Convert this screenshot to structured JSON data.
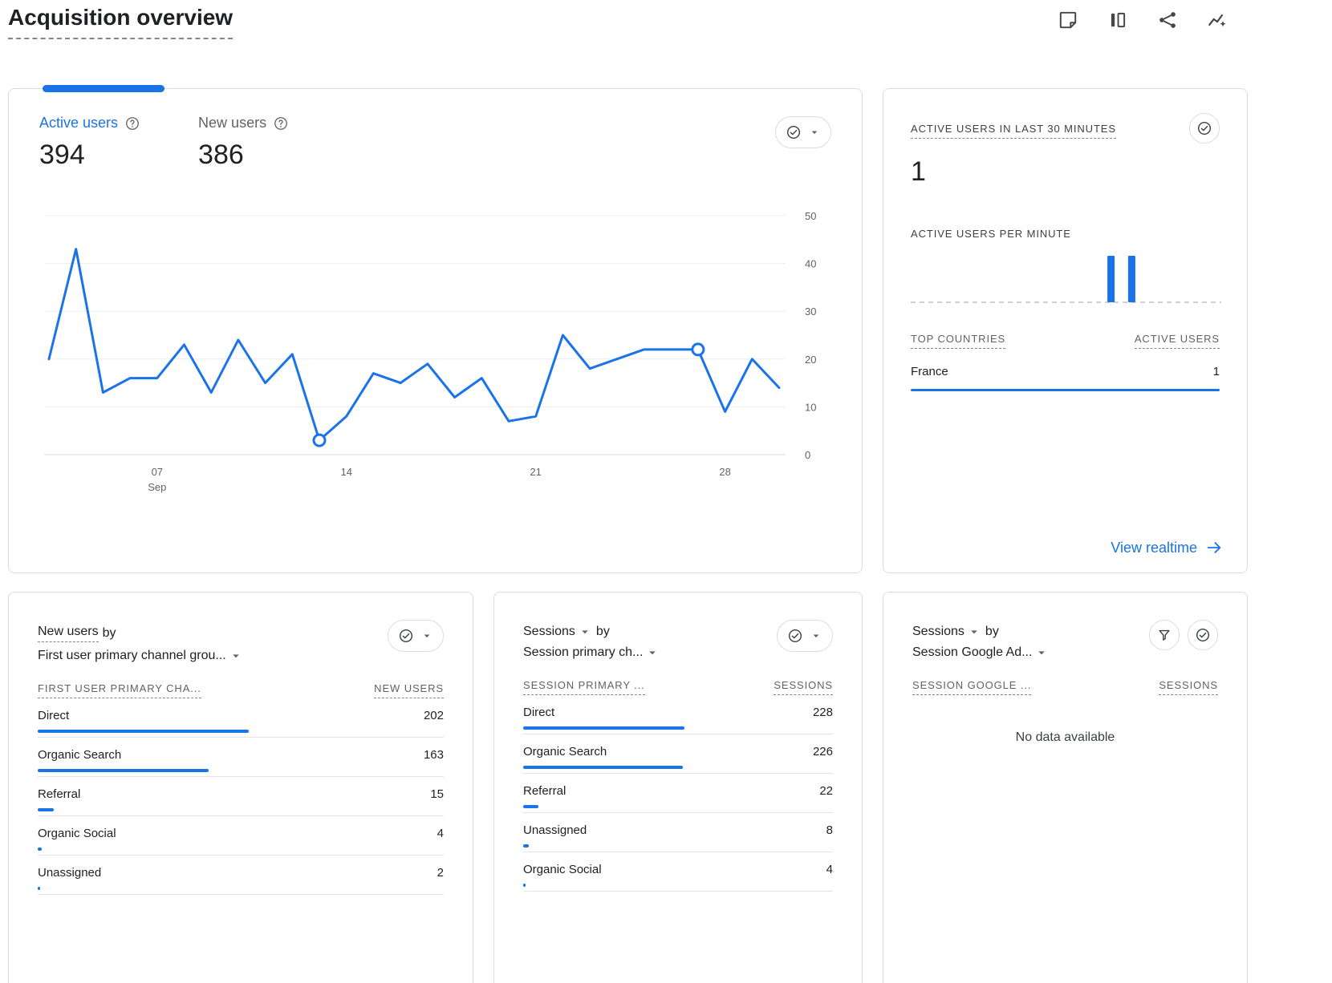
{
  "page": {
    "title": "Acquisition overview"
  },
  "header": {
    "icons": [
      "note-icon",
      "comparison-icon",
      "share-icon",
      "insights-icon",
      "edit-icon"
    ]
  },
  "colors": {
    "accent": "#1a73e8",
    "text": "#202124",
    "muted": "#5f6368",
    "border": "#dadce0"
  },
  "main_card": {
    "metrics": [
      {
        "label": "Active users",
        "value": "394",
        "active": true
      },
      {
        "label": "New users",
        "value": "386",
        "active": false
      }
    ]
  },
  "realtime_card": {
    "title": "ACTIVE USERS IN LAST 30 MINUTES",
    "value": "1",
    "per_minute_label": "ACTIVE USERS PER MINUTE",
    "countries_header": "TOP COUNTRIES",
    "active_users_header": "ACTIVE USERS",
    "rows": [
      {
        "label": "France",
        "value": "1",
        "pct": 100
      }
    ],
    "link_label": "View realtime"
  },
  "breakdown_cards": [
    {
      "metric": "New users",
      "metric_dropdown": false,
      "by_label": "by",
      "dimension": "First user primary channel grou...",
      "col1": "FIRST USER PRIMARY CHA...",
      "col2": "NEW USERS",
      "buttons": [
        "check-dropdown"
      ],
      "rows": [
        {
          "label": "Direct",
          "value": 202
        },
        {
          "label": "Organic Search",
          "value": 163
        },
        {
          "label": "Referral",
          "value": 15
        },
        {
          "label": "Organic Social",
          "value": 4
        },
        {
          "label": "Unassigned",
          "value": 2
        }
      ]
    },
    {
      "metric": "Sessions",
      "metric_dropdown": true,
      "by_label": "by",
      "dimension": "Session primary ch...",
      "col1": "SESSION PRIMARY ...",
      "col2": "SESSIONS",
      "buttons": [
        "check-dropdown"
      ],
      "rows": [
        {
          "label": "Direct",
          "value": 228
        },
        {
          "label": "Organic Search",
          "value": 226
        },
        {
          "label": "Referral",
          "value": 22
        },
        {
          "label": "Unassigned",
          "value": 8
        },
        {
          "label": "Organic Social",
          "value": 4
        }
      ]
    },
    {
      "metric": "Sessions",
      "metric_dropdown": true,
      "by_label": "by",
      "dimension": "Session Google Ad...",
      "col1": "SESSION GOOGLE ...",
      "col2": "SESSIONS",
      "buttons": [
        "filter",
        "check"
      ],
      "rows": [],
      "empty_text": "No data available"
    }
  ],
  "chart_data": [
    {
      "type": "line",
      "title": "Active users over time",
      "series": [
        {
          "name": "Active users",
          "values": [
            20,
            43,
            13,
            16,
            16,
            23,
            13,
            24,
            15,
            21,
            3,
            8,
            17,
            15,
            19,
            12,
            16,
            7,
            8,
            25,
            18,
            20,
            22,
            22,
            22,
            9,
            20,
            14
          ]
        }
      ],
      "x_unit": "day",
      "xticks": [
        {
          "index": 4,
          "label": "07",
          "sub": "Sep"
        },
        {
          "index": 11,
          "label": "14"
        },
        {
          "index": 18,
          "label": "21"
        },
        {
          "index": 25,
          "label": "28"
        }
      ],
      "ylim": [
        0,
        50
      ],
      "yticks": [
        0,
        10,
        20,
        30,
        40,
        50
      ],
      "markers": [
        10,
        24
      ],
      "grid": "horizontal",
      "legend": "none",
      "line_color": "#1a73e8"
    },
    {
      "type": "bar",
      "title": "Active users per minute",
      "minutes": 30,
      "bars": [
        {
          "minute": 19,
          "value": 1
        },
        {
          "minute": 21,
          "value": 1
        }
      ],
      "ylim": [
        0,
        1
      ],
      "bar_color": "#1a73e8"
    }
  ]
}
